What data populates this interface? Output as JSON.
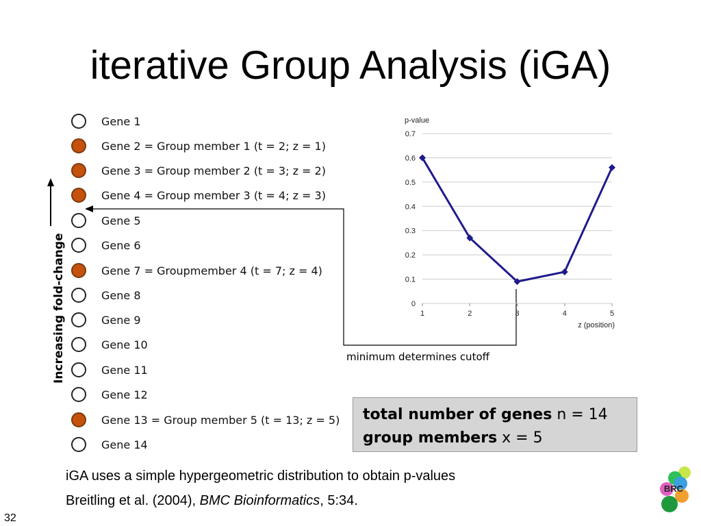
{
  "slide": {
    "title": "iterative Group Analysis (iGA)",
    "page_number": "32"
  },
  "genes": [
    {
      "label": "Gene 1",
      "member": false
    },
    {
      "label": "Gene 2 = Group member 1 (t = 2; z = 1)",
      "member": true
    },
    {
      "label": "Gene 3 = Group member 2 (t = 3; z = 2)",
      "member": true
    },
    {
      "label": "Gene 4 = Group member 3 (t = 4; z = 3)",
      "member": true
    },
    {
      "label": "Gene 5",
      "member": false
    },
    {
      "label": "Gene 6",
      "member": false
    },
    {
      "label": "Gene 7 = Groupmember 4 (t = 7; z = 4)",
      "member": true
    },
    {
      "label": "Gene 8",
      "member": false
    },
    {
      "label": "Gene 9",
      "member": false
    },
    {
      "label": "Gene 10",
      "member": false
    },
    {
      "label": "Gene 11",
      "member": false
    },
    {
      "label": "Gene 12",
      "member": false
    },
    {
      "label": "Gene 13 = Group member 5 (t = 13; z = 5)",
      "member": true
    },
    {
      "label": "Gene 14",
      "member": false
    }
  ],
  "fold_change_axis_label": "Increasing fold-change",
  "cutoff_label": "minimum determines cutoff",
  "summary": {
    "total_label": "total number of genes",
    "total_value": "n = 14",
    "members_label": "group members",
    "members_value": "x = 5"
  },
  "captions": {
    "line1": "iGA uses a simple hypergeometric distribution to obtain p-values",
    "line2_prefix": "Breitling et al. (2004), ",
    "line2_journal": "BMC Bioinformatics",
    "line2_suffix": ", 5:34."
  },
  "logo_text": "BRC",
  "chart_data": {
    "type": "line",
    "ylabel": "p-value",
    "xlabel": "z (position)",
    "x": [
      1,
      2,
      3,
      4,
      5
    ],
    "series": [
      {
        "values": [
          0.6,
          0.27,
          0.09,
          0.13,
          0.56
        ]
      }
    ],
    "xlim": [
      1,
      5
    ],
    "ylim": [
      0,
      0.7
    ],
    "yticks": [
      "0",
      "0.1",
      "0.2",
      "0.3",
      "0.4",
      "0.5",
      "0.6",
      "0.7"
    ],
    "xticks": [
      "1",
      "2",
      "3",
      "4",
      "5"
    ],
    "grid": true,
    "line_color": "#1f1a8c"
  }
}
